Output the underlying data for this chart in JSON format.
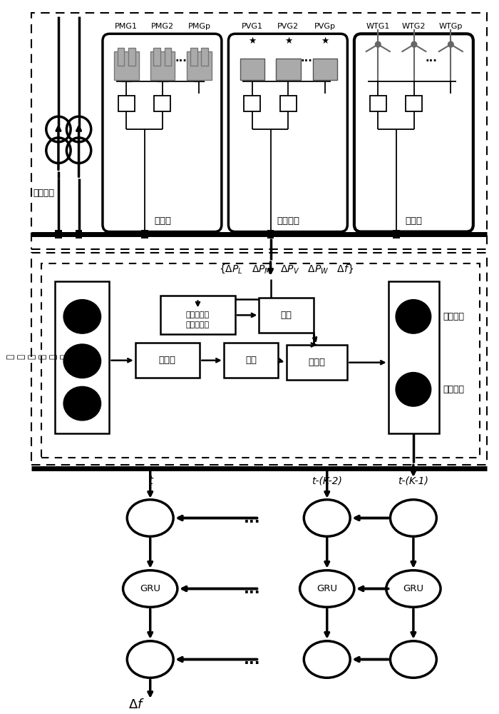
{
  "bg_color": "#ffffff",
  "line_color": "#000000",
  "label_fuhe": "负荷扰动",
  "label_huodian": "火电厂",
  "label_guangfu": "光伏电站",
  "label_fengdian": "风电场",
  "label_PMG1": "PMG1",
  "label_PMG2": "PMG2",
  "label_PMGp": "PMGp",
  "label_PVG1": "PVG1",
  "label_PVG2": "PVG2",
  "label_PVGp": "PVGp",
  "label_WTG1": "WTG1",
  "label_WTG2": "WTG2",
  "label_WTGp": "WTGp",
  "label_noise": "从\n噪\n声\n分\n布\n采\n样",
  "label_measure_line1": "测量单元测",
  "label_measure_line2": "得真实数据",
  "label_generator": "生成器",
  "label_sample1": "采样",
  "label_sample2": "采样",
  "label_discriminator": "判别器",
  "label_gen_data": "生成数据",
  "label_real_data": "真实数据",
  "label_t": "t",
  "label_tK2": "t-(K-2)",
  "label_tK1": "t-(K-1)",
  "label_GRU": "GRU",
  "label_deltaf": "\\Delta f"
}
